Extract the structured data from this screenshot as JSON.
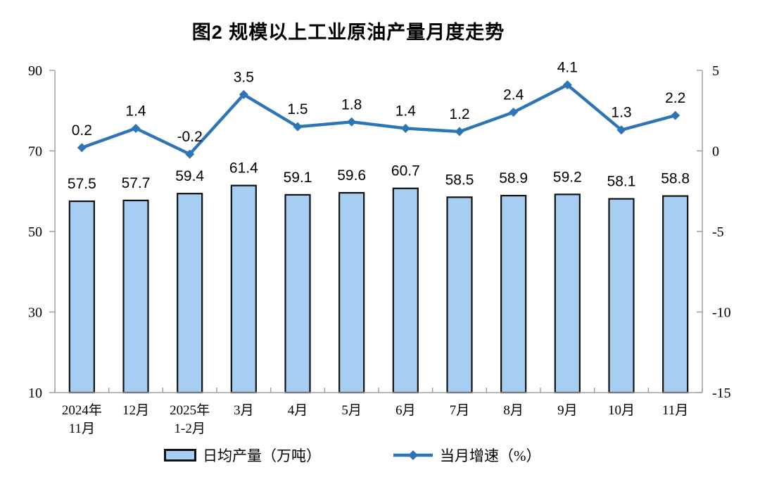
{
  "title": "图2  规模以上工业原油产量月度走势",
  "chart_data": {
    "type": "combo-bar-line",
    "categories": [
      "2024年\n11月",
      "12月",
      "2025年\n1-2月",
      "3月",
      "4月",
      "5月",
      "6月",
      "7月",
      "8月",
      "9月",
      "10月",
      "11月"
    ],
    "series": [
      {
        "name": "日均产量（万吨）",
        "type": "bar",
        "axis": "left",
        "values": [
          57.5,
          57.7,
          59.4,
          61.4,
          59.1,
          59.6,
          60.7,
          58.5,
          58.9,
          59.2,
          58.1,
          58.8
        ]
      },
      {
        "name": "当月增速（%）",
        "type": "line",
        "axis": "right",
        "values": [
          0.2,
          1.4,
          -0.2,
          3.5,
          1.5,
          1.8,
          1.4,
          1.2,
          2.4,
          4.1,
          1.3,
          2.2
        ]
      }
    ],
    "left_axis": {
      "min": 10,
      "max": 90,
      "ticks": [
        10,
        30,
        50,
        70,
        90
      ]
    },
    "right_axis": {
      "min": -15,
      "max": 5,
      "ticks": [
        -15,
        -10,
        -5,
        0,
        5
      ]
    },
    "grid": false,
    "legend_position": "bottom",
    "data_labels": true,
    "colors": {
      "bar_fill": "#A6CEF2",
      "bar_border": "#111111",
      "line": "#2E75B6",
      "axis": "#A0A0A0",
      "text": "#000000",
      "background": "#FFFFFF"
    }
  }
}
